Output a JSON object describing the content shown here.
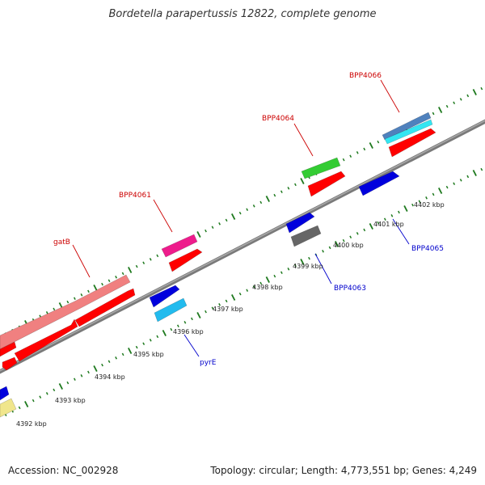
{
  "title": "Bordetella parapertussis 12822, complete genome",
  "footer": {
    "accession": "Accession: NC_002928",
    "summary": "Topology: circular; Length: 4,773,551 bp; Genes: 4,249"
  },
  "colors": {
    "backbone": "#808080",
    "tick": "#1f7a1f",
    "forward_label": "#cc0000",
    "reverse_label": "#0000cc"
  },
  "kbp_labels": [
    {
      "id": "4392",
      "text": "4392 kbp"
    },
    {
      "id": "4393",
      "text": "4393 kbp"
    },
    {
      "id": "4394",
      "text": "4394 kbp"
    },
    {
      "id": "4395",
      "text": "4395 kbp"
    },
    {
      "id": "4396",
      "text": "4396 kbp"
    },
    {
      "id": "4397",
      "text": "4397 kbp"
    },
    {
      "id": "4398",
      "text": "4398 kbp"
    },
    {
      "id": "4399",
      "text": "4399 kbp"
    },
    {
      "id": "4400",
      "text": "4400 kbp"
    },
    {
      "id": "4401",
      "text": "4401 kbp"
    },
    {
      "id": "4402",
      "text": "4402 kbp"
    }
  ],
  "gene_labels": [
    {
      "id": "gatB",
      "text": "gatB",
      "strand": "forward"
    },
    {
      "id": "BPP4061",
      "text": "BPP4061",
      "strand": "forward"
    },
    {
      "id": "BPP4064",
      "text": "BPP4064",
      "strand": "forward"
    },
    {
      "id": "BPP4066",
      "text": "BPP4066",
      "strand": "forward"
    },
    {
      "id": "pyrE",
      "text": "pyrE",
      "strand": "reverse"
    },
    {
      "id": "BPP4063",
      "text": "BPP4063",
      "strand": "reverse"
    },
    {
      "id": "BPP4065",
      "text": "BPP4065",
      "strand": "reverse"
    }
  ],
  "features": [
    {
      "id": "gatB-cog",
      "color": "#f08080"
    },
    {
      "id": "gatB-cds",
      "color": "#ff0000"
    },
    {
      "id": "gatB-cds-left",
      "color": "#ff0000"
    },
    {
      "id": "left-red-small",
      "color": "#ff0000"
    },
    {
      "id": "BPP4061-cog",
      "color": "#ee1c8c"
    },
    {
      "id": "BPP4061-cds",
      "color": "#ff0000"
    },
    {
      "id": "BPP4064-cog",
      "color": "#33cc33"
    },
    {
      "id": "BPP4064-cds",
      "color": "#ff0000"
    },
    {
      "id": "BPP4066-cog",
      "color": "#4f81bd"
    },
    {
      "id": "BPP4066-cog2",
      "color": "#33e6f2"
    },
    {
      "id": "BPP4066-cds",
      "color": "#ff0000"
    },
    {
      "id": "pyrE-cds",
      "color": "#0000dd"
    },
    {
      "id": "pyrE-cog",
      "color": "#22bbee"
    },
    {
      "id": "BPP4063-cds",
      "color": "#0000dd"
    },
    {
      "id": "BPP4063-cog",
      "color": "#666666"
    },
    {
      "id": "BPP4065-cds",
      "color": "#0000dd"
    },
    {
      "id": "left-blue",
      "color": "#0000dd"
    },
    {
      "id": "left-yellow",
      "color": "#f0e68c"
    }
  ]
}
